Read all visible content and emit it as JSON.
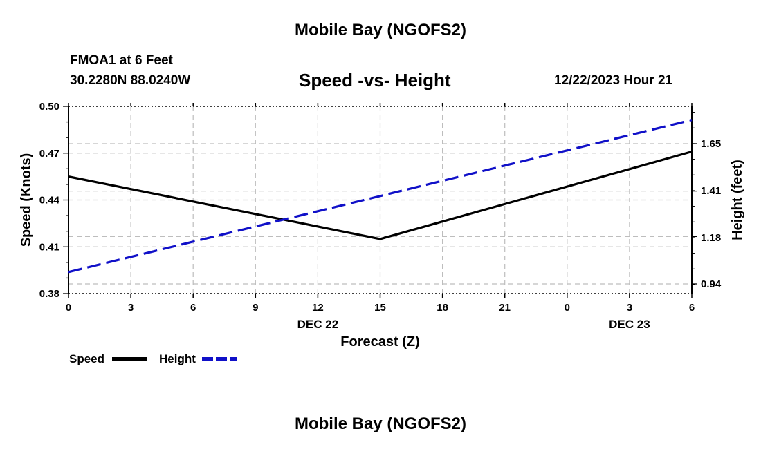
{
  "page": {
    "title_top": "Mobile Bay (NGOFS2)",
    "title_bottom": "Mobile Bay (NGOFS2)",
    "station": "FMOA1 at 6 Feet",
    "coords": "30.2280N  88.0240W",
    "subtitle": "Speed -vs- Height",
    "datetime": "12/22/2023 Hour 21"
  },
  "colors": {
    "speed": "#000000",
    "height": "#1010c8",
    "grid": "#bdbdbd"
  },
  "chart_data": {
    "type": "line",
    "title": "Speed -vs- Height",
    "xlabel": "Forecast (Z)",
    "ylabel_left": "Speed (Knots)",
    "ylabel_right": "Height (feet)",
    "x_ticks": [
      "0",
      "3",
      "6",
      "9",
      "12",
      "15",
      "18",
      "21",
      "0",
      "3",
      "6"
    ],
    "date_labels": [
      {
        "label": "DEC 22",
        "at_tick": 4
      },
      {
        "label": "DEC 23",
        "at_tick": 9
      }
    ],
    "ylim_left": [
      0.38,
      0.5
    ],
    "yticks_left": [
      "0.50",
      "0.47",
      "0.44",
      "0.41",
      "0.38"
    ],
    "yticks_right": [
      "1.65",
      "1.41",
      "1.18",
      "0.94"
    ],
    "grid": true,
    "legend": "bottom-left",
    "series": [
      {
        "name": "Speed",
        "axis": "left",
        "style": "solid",
        "x": [
          "DEC 22 00Z",
          "DEC 22 15Z",
          "DEC 23 06Z"
        ],
        "values": [
          0.455,
          0.415,
          0.471
        ]
      },
      {
        "name": "Height",
        "axis": "right",
        "style": "dashed",
        "x": [
          "DEC 22 00Z",
          "DEC 23 06Z"
        ],
        "values": [
          1.0,
          1.77
        ]
      }
    ]
  }
}
